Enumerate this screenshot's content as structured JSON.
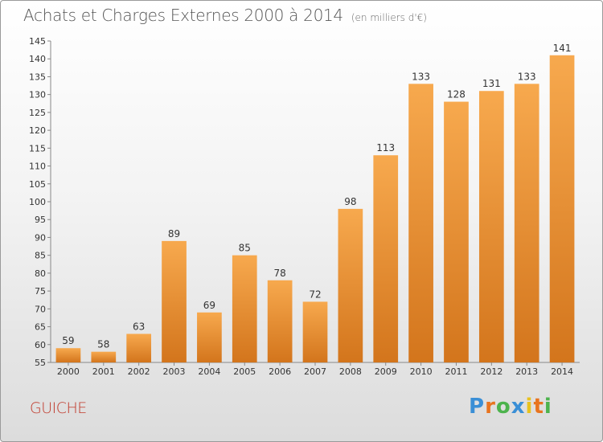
{
  "header": {
    "title": "Achats et Charges Externes 2000 à 2014",
    "subtitle": "(en milliers d'€)"
  },
  "footer": {
    "commune": "GUICHE",
    "logo": {
      "letters": [
        "P",
        "r",
        "o",
        "x",
        "i",
        "t",
        "i"
      ],
      "name": "proxiti-logo"
    }
  },
  "colors": {
    "bar_light": "#f7a94e",
    "bar_dark": "#d3751c",
    "commune_text": "#c0392b"
  },
  "chart_data": {
    "type": "bar",
    "title": "Achats et Charges Externes 2000 à 2014",
    "subtitle": "(en milliers d'€)",
    "xlabel": "",
    "ylabel": "",
    "categories": [
      "2000",
      "2001",
      "2002",
      "2003",
      "2004",
      "2005",
      "2006",
      "2007",
      "2008",
      "2009",
      "2010",
      "2011",
      "2012",
      "2013",
      "2014"
    ],
    "values": [
      59,
      58,
      63,
      89,
      69,
      85,
      78,
      72,
      98,
      113,
      133,
      128,
      131,
      133,
      141
    ],
    "ylim": [
      55,
      145
    ],
    "yticks": [
      55,
      60,
      65,
      70,
      75,
      80,
      85,
      90,
      95,
      100,
      105,
      110,
      115,
      120,
      125,
      130,
      135,
      140,
      145
    ],
    "grid": false,
    "legend": "none",
    "data_labels": true
  }
}
